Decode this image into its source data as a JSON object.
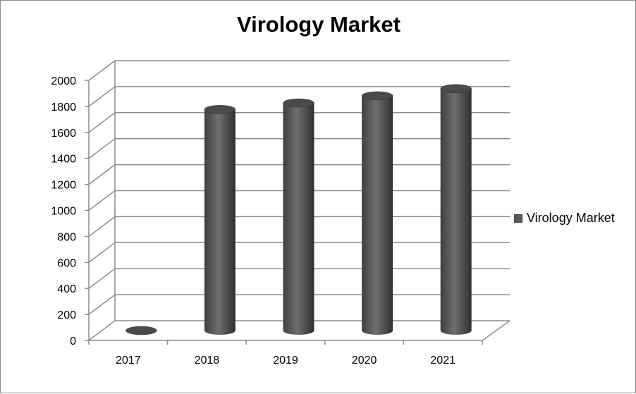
{
  "chart_data": {
    "type": "bar",
    "title": "Virology Market",
    "categories": [
      "2017",
      "2018",
      "2019",
      "2020",
      "2021"
    ],
    "series": [
      {
        "name": "Virology Market",
        "values": [
          0,
          1700,
          1750,
          1805,
          1860
        ]
      }
    ],
    "y_ticks": [
      "0",
      "200",
      "400",
      "600",
      "800",
      "1000",
      "1200",
      "1400",
      "1600",
      "1800",
      "2000"
    ],
    "ylim": [
      0,
      2000
    ],
    "xlabel": "",
    "ylabel": "",
    "grid": true,
    "legend_position": "right",
    "bar_shape": "3d-cylinder",
    "colors": {
      "bar_dark": "#3f3f3f",
      "bar_mid": "#6f6f6f",
      "bar_top": "#4a4a4a",
      "grid": "#8c8c8c",
      "axis": "#8c8c8c"
    }
  }
}
